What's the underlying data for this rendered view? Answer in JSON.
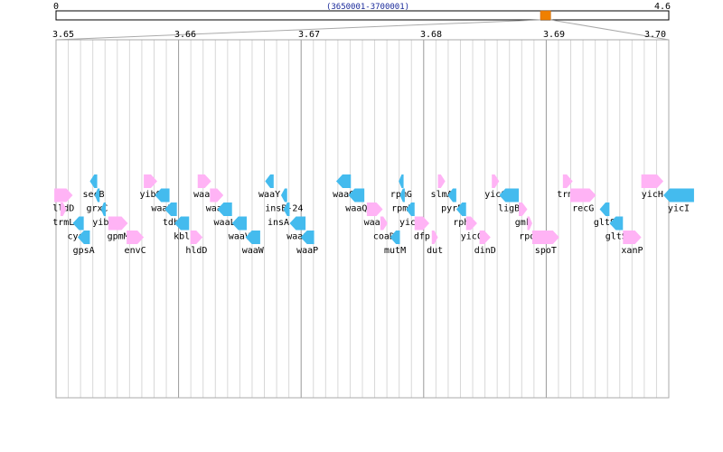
{
  "overview": {
    "start_label": "0",
    "end_label": "4.6",
    "range_label": "(3650001-3700001)",
    "genome_max": 4.6,
    "window_start": 3.65,
    "window_end": 3.7,
    "marker_color": "#f08000"
  },
  "axis": {
    "min": 3.65,
    "max": 3.7,
    "tick_labels": [
      "3.65",
      "3.66",
      "3.67",
      "3.68",
      "3.69",
      "3.70"
    ]
  },
  "colors": {
    "forward": "#ffb3f5",
    "reverse": "#44bbee",
    "grid": "#d8d8d8",
    "major_grid": "#999999",
    "frame": "#aaaaaa"
  },
  "genes": [
    {
      "name": "lldD",
      "start": 3.64986,
      "end": 3.65136,
      "strand": "+",
      "row": 0
    },
    {
      "name": "trmL",
      "start": 3.65036,
      "end": 3.65086,
      "strand": "+",
      "row": 1
    },
    {
      "name": "cysE",
      "start": 3.65136,
      "end": 3.65226,
      "strand": "-",
      "row": 2
    },
    {
      "name": "gpsA",
      "start": 3.65176,
      "end": 3.65276,
      "strand": "-",
      "row": 3
    },
    {
      "name": "secB",
      "start": 3.65276,
      "end": 3.65336,
      "strand": "-",
      "row": -1
    },
    {
      "name": "grxC",
      "start": 3.65316,
      "end": 3.65356,
      "strand": "-",
      "row": 0
    },
    {
      "name": "yibN",
      "start": 3.65366,
      "end": 3.65406,
      "strand": "-",
      "row": 1
    },
    {
      "name": "gpmM",
      "start": 3.65426,
      "end": 3.65586,
      "strand": "+",
      "row": 2
    },
    {
      "name": "envC",
      "start": 3.65576,
      "end": 3.65716,
      "strand": "+",
      "row": 3
    },
    {
      "name": "yibQ",
      "start": 3.65716,
      "end": 3.65826,
      "strand": "+",
      "row": -1
    },
    {
      "name": "waaH",
      "start": 3.65806,
      "end": 3.65926,
      "strand": "-",
      "row": 0
    },
    {
      "name": "tdh",
      "start": 3.65886,
      "end": 3.65986,
      "strand": "-",
      "row": 1
    },
    {
      "name": "kbl",
      "start": 3.65966,
      "end": 3.66086,
      "strand": "-",
      "row": 2
    },
    {
      "name": "hldD",
      "start": 3.66096,
      "end": 3.66196,
      "strand": "+",
      "row": 3
    },
    {
      "name": "waaF",
      "start": 3.66156,
      "end": 3.66266,
      "strand": "+",
      "row": -1
    },
    {
      "name": "waaC",
      "start": 3.66256,
      "end": 3.66366,
      "strand": "+",
      "row": 0
    },
    {
      "name": "waaL",
      "start": 3.66316,
      "end": 3.66436,
      "strand": "-",
      "row": 1
    },
    {
      "name": "waaV",
      "start": 3.66436,
      "end": 3.66556,
      "strand": "-",
      "row": 2
    },
    {
      "name": "waaW",
      "start": 3.66546,
      "end": 3.66666,
      "strand": "-",
      "row": 3
    },
    {
      "name": "waaY",
      "start": 3.66706,
      "end": 3.66776,
      "strand": "-",
      "row": -1
    },
    {
      "name": "insB-24",
      "start": 3.66836,
      "end": 3.66886,
      "strand": "-",
      "row": 0
    },
    {
      "name": "insA-24",
      "start": 3.66856,
      "end": 3.66906,
      "strand": "-",
      "row": 1
    },
    {
      "name": "waaO",
      "start": 3.66906,
      "end": 3.67036,
      "strand": "-",
      "row": 2
    },
    {
      "name": "waaP",
      "start": 3.66996,
      "end": 3.67106,
      "strand": "-",
      "row": 3
    },
    {
      "name": "waaG",
      "start": 3.67286,
      "end": 3.67406,
      "strand": "-",
      "row": -1
    },
    {
      "name": "waaQ",
      "start": 3.67386,
      "end": 3.67516,
      "strand": "-",
      "row": 0
    },
    {
      "name": "waaA",
      "start": 3.67536,
      "end": 3.67666,
      "strand": "+",
      "row": 1
    },
    {
      "name": "coaD",
      "start": 3.67646,
      "end": 3.67706,
      "strand": "+",
      "row": 2
    },
    {
      "name": "mutM",
      "start": 3.67726,
      "end": 3.67806,
      "strand": "-",
      "row": 3
    },
    {
      "name": "rpmG",
      "start": 3.67796,
      "end": 3.67836,
      "strand": "-",
      "row": -1
    },
    {
      "name": "rpmB",
      "start": 3.67806,
      "end": 3.67846,
      "strand": "-",
      "row": 0
    },
    {
      "name": "yicR",
      "start": 3.67856,
      "end": 3.67926,
      "strand": "-",
      "row": 1
    },
    {
      "name": "dfp",
      "start": 3.67926,
      "end": 3.68046,
      "strand": "+",
      "row": 2
    },
    {
      "name": "dut",
      "start": 3.68066,
      "end": 3.68116,
      "strand": "+",
      "row": 3
    },
    {
      "name": "slmA",
      "start": 3.68116,
      "end": 3.68176,
      "strand": "+",
      "row": -1
    },
    {
      "name": "pyrE",
      "start": 3.68196,
      "end": 3.68266,
      "strand": "-",
      "row": 0
    },
    {
      "name": "rph",
      "start": 3.68266,
      "end": 3.68346,
      "strand": "-",
      "row": 1
    },
    {
      "name": "yicC",
      "start": 3.68346,
      "end": 3.68436,
      "strand": "+",
      "row": 2
    },
    {
      "name": "dinD",
      "start": 3.68456,
      "end": 3.68546,
      "strand": "+",
      "row": 3
    },
    {
      "name": "yicG",
      "start": 3.68556,
      "end": 3.68616,
      "strand": "+",
      "row": -1
    },
    {
      "name": "ligB",
      "start": 3.68616,
      "end": 3.68776,
      "strand": "-",
      "row": 0
    },
    {
      "name": "gmk",
      "start": 3.68776,
      "end": 3.68846,
      "strand": "+",
      "row": 1
    },
    {
      "name": "rpoZ",
      "start": 3.68846,
      "end": 3.68886,
      "strand": "+",
      "row": 2
    },
    {
      "name": "spoT",
      "start": 3.68886,
      "end": 3.69106,
      "strand": "+",
      "row": 3
    },
    {
      "name": "trmH",
      "start": 3.69136,
      "end": 3.69216,
      "strand": "+",
      "row": -1
    },
    {
      "name": "recG",
      "start": 3.69196,
      "end": 3.69406,
      "strand": "+",
      "row": 0
    },
    {
      "name": "gltS",
      "start": 3.69436,
      "end": 3.69516,
      "strand": "-",
      "row": 1
    },
    {
      "name": "gltS",
      "start": 3.69516,
      "end": 3.69626,
      "strand": "-",
      "row": 2
    },
    {
      "name": "xanP",
      "start": 3.69626,
      "end": 3.69776,
      "strand": "+",
      "row": 3
    },
    {
      "name": "yicH",
      "start": 3.69776,
      "end": 3.69956,
      "strand": "+",
      "row": -1
    },
    {
      "name": "yicI",
      "start": 3.69956,
      "end": 3.70206,
      "strand": "-",
      "row": 0
    }
  ]
}
